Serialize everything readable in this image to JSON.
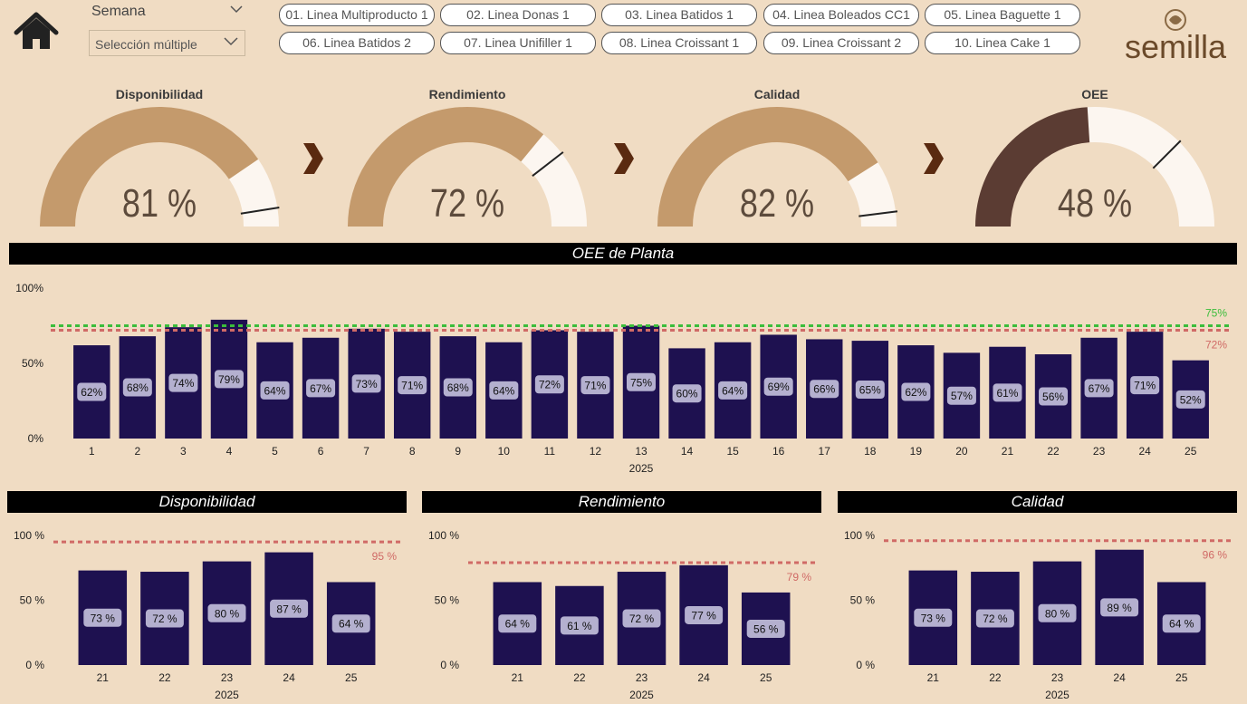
{
  "header": {
    "period_label": "Semana",
    "multi_select": "Selección múltiple",
    "lines": [
      "01. Linea Multiproducto 1",
      "02. Linea Donas 1",
      "03. Linea Batidos 1",
      "04. Linea Boleados CC1",
      "05. Linea Baguette 1",
      "06. Linea Batidos 2",
      "07. Linea Unifiller 1",
      "08. Linea Croissant 1",
      "09. Linea Croissant 2",
      "10. Linea Cake 1"
    ],
    "logo_text": "semilla"
  },
  "colors": {
    "background": "#f0dcc3",
    "bar": "#1e1150",
    "gauge_fill": "#c49a6c",
    "gauge_fill_oee": "#5b3c33",
    "gauge_rest": "#fcf6f0",
    "target_green": "#3bbd3b",
    "target_red": "#d06a66",
    "arrow": "#5a2a10"
  },
  "gauges": [
    {
      "title": "Disponibilidad",
      "value": 81,
      "target": 95,
      "display": "81 %"
    },
    {
      "title": "Rendimiento",
      "value": 72,
      "target": 79,
      "display": "72 %"
    },
    {
      "title": "Calidad",
      "value": 82,
      "target": 96,
      "display": "82 %"
    },
    {
      "title": "OEE",
      "value": 48,
      "target": 75,
      "display": "48 %"
    }
  ],
  "chart_data": [
    {
      "type": "bar",
      "title": "OEE de Planta",
      "categories": [
        "1",
        "2",
        "3",
        "4",
        "5",
        "6",
        "7",
        "8",
        "9",
        "10",
        "11",
        "12",
        "13",
        "14",
        "15",
        "16",
        "17",
        "18",
        "19",
        "20",
        "21",
        "22",
        "23",
        "24",
        "25"
      ],
      "values": [
        62,
        68,
        74,
        79,
        64,
        67,
        73,
        71,
        68,
        64,
        72,
        71,
        75,
        60,
        64,
        69,
        66,
        65,
        62,
        57,
        61,
        56,
        67,
        71,
        52
      ],
      "labels": [
        "62%",
        "68%",
        "74%",
        "79%",
        "64%",
        "67%",
        "73%",
        "71%",
        "68%",
        "64%",
        "72%",
        "71%",
        "75%",
        "60%",
        "64%",
        "69%",
        "66%",
        "65%",
        "62%",
        "57%",
        "61%",
        "56%",
        "67%",
        "71%",
        "52%"
      ],
      "year": "2025",
      "ylim": [
        0,
        100
      ],
      "yticks": [
        "0%",
        "50%",
        "100%"
      ],
      "targets": [
        {
          "value": 75,
          "label": "75%",
          "color": "#3bbd3b"
        },
        {
          "value": 72,
          "label": "72%",
          "color": "#d06a66"
        }
      ]
    },
    {
      "type": "bar",
      "title": "Disponibilidad",
      "categories": [
        "21",
        "22",
        "23",
        "24",
        "25"
      ],
      "values": [
        73,
        72,
        80,
        87,
        64
      ],
      "labels": [
        "73 %",
        "72 %",
        "80 %",
        "87 %",
        "64 %"
      ],
      "year": "2025",
      "ylim": [
        0,
        100
      ],
      "yticks": [
        "0 %",
        "50 %",
        "100 %"
      ],
      "targets": [
        {
          "value": 95,
          "label": "95 %",
          "color": "#d06a66"
        }
      ]
    },
    {
      "type": "bar",
      "title": "Rendimiento",
      "categories": [
        "21",
        "22",
        "23",
        "24",
        "25"
      ],
      "values": [
        64,
        61,
        72,
        77,
        56
      ],
      "labels": [
        "64 %",
        "61 %",
        "72 %",
        "77 %",
        "56 %"
      ],
      "year": "2025",
      "ylim": [
        0,
        100
      ],
      "yticks": [
        "0 %",
        "50 %",
        "100 %"
      ],
      "targets": [
        {
          "value": 79,
          "label": "79 %",
          "color": "#d06a66"
        }
      ]
    },
    {
      "type": "bar",
      "title": "Calidad",
      "categories": [
        "21",
        "22",
        "23",
        "24",
        "25"
      ],
      "values": [
        73,
        72,
        80,
        89,
        64
      ],
      "labels": [
        "73 %",
        "72 %",
        "80 %",
        "89 %",
        "64 %"
      ],
      "year": "2025",
      "ylim": [
        0,
        100
      ],
      "yticks": [
        "0 %",
        "50 %",
        "100 %"
      ],
      "targets": [
        {
          "value": 96,
          "label": "96 %",
          "color": "#d06a66"
        }
      ]
    }
  ]
}
